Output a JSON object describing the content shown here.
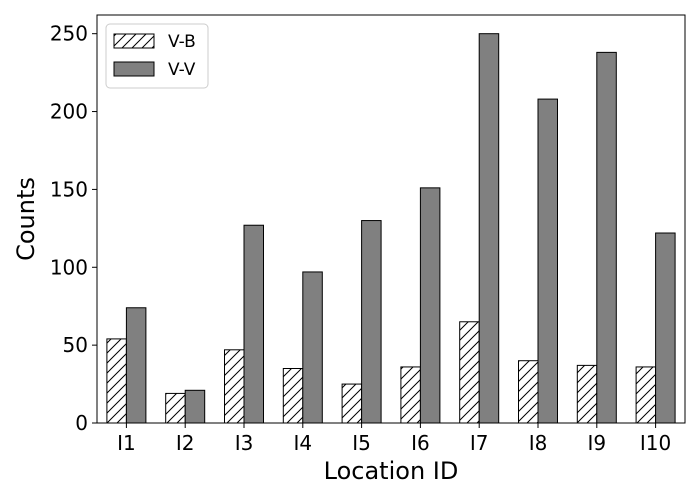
{
  "chart_data": {
    "type": "bar",
    "categories": [
      "I1",
      "I2",
      "I3",
      "I4",
      "I5",
      "I6",
      "I7",
      "I8",
      "I9",
      "I10"
    ],
    "series": [
      {
        "name": "V-B",
        "values": [
          54,
          19,
          47,
          35,
          25,
          36,
          65,
          40,
          37,
          36
        ],
        "fill": "#ffffff",
        "pattern": "hatch"
      },
      {
        "name": "V-V",
        "values": [
          74,
          21,
          127,
          97,
          130,
          151,
          250,
          208,
          238,
          122
        ],
        "fill": "#808080",
        "pattern": "solid"
      }
    ],
    "title": "",
    "xlabel": "Location ID",
    "ylabel": "Counts",
    "ylim": [
      0,
      262
    ],
    "yticks": [
      0,
      50,
      100,
      150,
      200,
      250
    ],
    "grid": false,
    "legend_position": "top-left",
    "edge_color": "#000000"
  }
}
